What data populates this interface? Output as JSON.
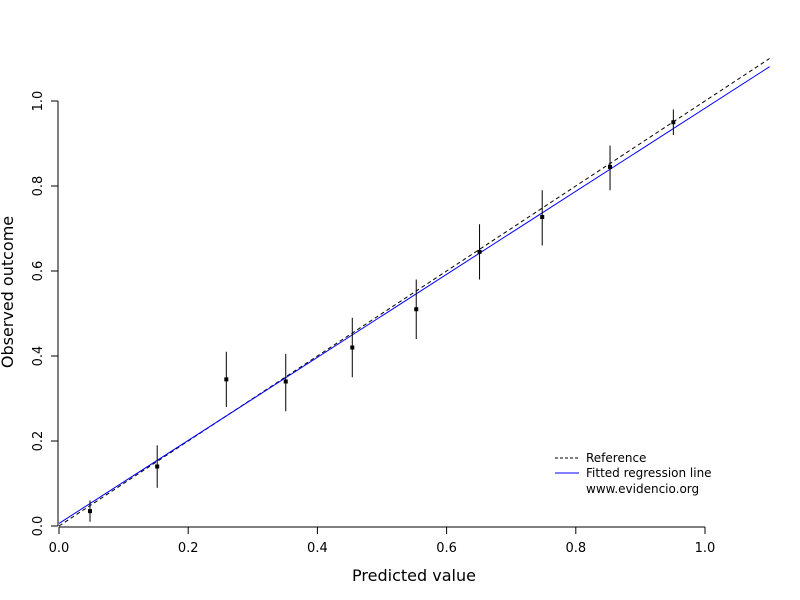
{
  "chart_data": {
    "type": "scatter",
    "title": "",
    "xlabel": "Predicted value",
    "ylabel": "Observed outcome",
    "xlim": [
      0,
      1.1
    ],
    "ylim": [
      0,
      1.1
    ],
    "x_ticks": [
      "0.0",
      "0.2",
      "0.4",
      "0.6",
      "0.8",
      "1.0"
    ],
    "y_ticks": [
      "0.0",
      "0.2",
      "0.4",
      "0.6",
      "0.8",
      "1.0"
    ],
    "grid": false,
    "legend_position": "bottom-right",
    "points": [
      {
        "x": 0.048,
        "y": 0.035,
        "lo": 0.01,
        "hi": 0.06
      },
      {
        "x": 0.152,
        "y": 0.14,
        "lo": 0.09,
        "hi": 0.19
      },
      {
        "x": 0.259,
        "y": 0.345,
        "lo": 0.28,
        "hi": 0.41
      },
      {
        "x": 0.351,
        "y": 0.34,
        "lo": 0.27,
        "hi": 0.405
      },
      {
        "x": 0.454,
        "y": 0.42,
        "lo": 0.35,
        "hi": 0.49
      },
      {
        "x": 0.553,
        "y": 0.51,
        "lo": 0.44,
        "hi": 0.58
      },
      {
        "x": 0.651,
        "y": 0.645,
        "lo": 0.58,
        "hi": 0.71
      },
      {
        "x": 0.748,
        "y": 0.727,
        "lo": 0.66,
        "hi": 0.79
      },
      {
        "x": 0.853,
        "y": 0.845,
        "lo": 0.79,
        "hi": 0.895
      },
      {
        "x": 0.951,
        "y": 0.95,
        "lo": 0.92,
        "hi": 0.98
      }
    ],
    "reference_line": {
      "intercept": 0.0,
      "slope": 1.0,
      "color": "#000000",
      "style": "dashed"
    },
    "fitted_line": {
      "intercept": 0.006,
      "slope": 0.977,
      "color": "#0000ff"
    },
    "legend": [
      {
        "label": "Reference",
        "color": "#000000",
        "style": "dashed"
      },
      {
        "label": "Fitted regression line",
        "color": "#0000ff",
        "style": "solid"
      },
      {
        "label": "www.evidencio.org",
        "color": "",
        "style": "none"
      }
    ]
  }
}
